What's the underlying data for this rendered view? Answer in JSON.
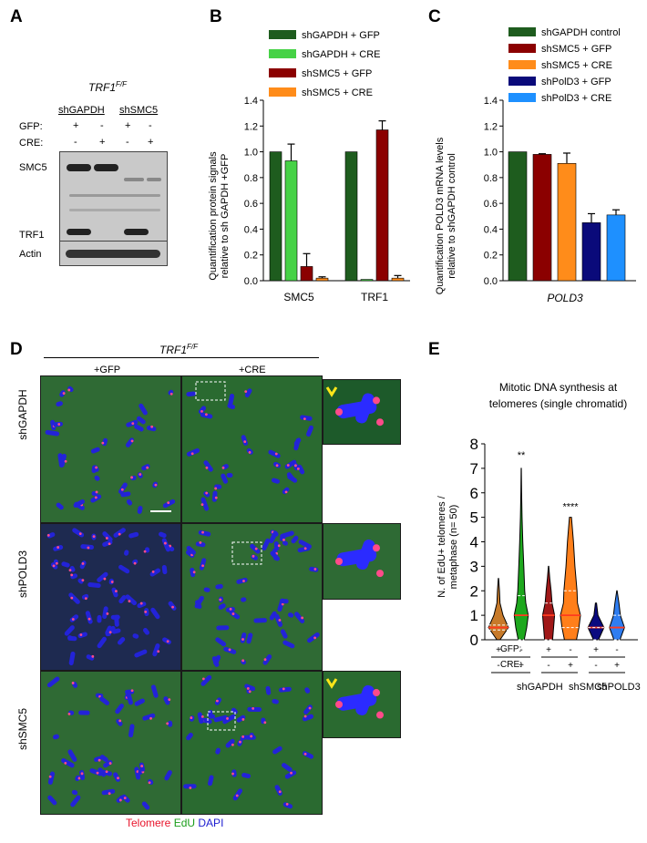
{
  "panels": {
    "a": "A",
    "b": "B",
    "c": "C",
    "d": "D",
    "e": "E"
  },
  "panel_a": {
    "genotype": "TRF1F/F",
    "genotype_base": "TRF1",
    "genotype_sup": "F/F",
    "groups": [
      "shGAPDH",
      "shSMC5"
    ],
    "row_gfp": "GFP:",
    "row_cre": "CRE:",
    "gfp_signs": [
      "+",
      "-",
      "+",
      "-"
    ],
    "cre_signs": [
      "-",
      "+",
      "-",
      "+"
    ],
    "bands": [
      "SMC5",
      "TRF1",
      "Actin"
    ]
  },
  "panel_b": {
    "ylabel": "Quantification protein signals relative to sh GAPDH +GFP",
    "ylabel_line1": "Quantification protein signals",
    "ylabel_line2": "relative to sh GAPDH +GFP"
  },
  "panel_c": {
    "ylabel_line1": "Quantification POLD3 mRNA levels",
    "ylabel_line2": "relative to shGAPDH control",
    "xlabel": "POLD3"
  },
  "panel_d": {
    "genotype_base": "TRF1",
    "genotype_sup": "F/F",
    "col_gfp": "+GFP",
    "col_cre": "+CRE",
    "rows": [
      "shGAPDH",
      "shPOLD3",
      "shSMC5"
    ],
    "legend_telomere": "Telomere",
    "legend_edu": "EdU",
    "legend_dapi": "DAPI",
    "colors": {
      "telomere": "#e8152c",
      "edu": "#1b9e1b",
      "dapi": "#1c1cd0"
    }
  },
  "panel_e": {
    "title_line1": "Mitotic DNA synthesis at",
    "title_line2": "telomeres (single chromatid)",
    "ylabel_line1": "N. of EdU+ telomeres /",
    "ylabel_line2": "metaphase (n= 50)",
    "row_gfp": "GFP:",
    "row_cre": "CRE:",
    "gfp_signs": [
      "+",
      "-",
      "+",
      "-",
      "+",
      "-"
    ],
    "cre_signs": [
      "-",
      "+",
      "-",
      "+",
      "-",
      "+"
    ],
    "groups": [
      "shGAPDH",
      "shSMC5",
      "shPOLD3"
    ],
    "sig": [
      "**",
      "****"
    ]
  },
  "chart_data": [
    {
      "type": "bar",
      "panel": "B",
      "categories": [
        "SMC5",
        "TRF1"
      ],
      "series": [
        {
          "name": "shGAPDH + GFP",
          "values": [
            1.0,
            1.0
          ],
          "errors": [
            0,
            0
          ],
          "color": "#1e5c1e"
        },
        {
          "name": "shGAPDH + CRE",
          "values": [
            0.93,
            0.01
          ],
          "errors": [
            0.13,
            0.0
          ],
          "color": "#46d246"
        },
        {
          "name": "shSMC5 + GFP",
          "values": [
            0.11,
            1.17
          ],
          "errors": [
            0.1,
            0.07
          ],
          "color": "#8b0000"
        },
        {
          "name": "shSMC5 + CRE",
          "values": [
            0.02,
            0.02
          ],
          "errors": [
            0.01,
            0.02
          ],
          "color": "#ff8c1a"
        }
      ],
      "ylim": [
        0,
        1.4
      ],
      "yticks": [
        "0.0",
        "0.2",
        "0.4",
        "0.6",
        "0.8",
        "1.0",
        "1.2",
        "1.4"
      ],
      "legend": "top"
    },
    {
      "type": "bar",
      "panel": "C",
      "categories": [
        "POLD3"
      ],
      "series": [
        {
          "name": "shGAPDH control",
          "values": [
            1.0
          ],
          "errors": [
            0
          ],
          "color": "#1e5c1e"
        },
        {
          "name": "shSMC5 + GFP",
          "values": [
            0.98
          ],
          "errors": [
            0.005
          ],
          "color": "#8b0000"
        },
        {
          "name": "shSMC5 + CRE",
          "values": [
            0.91
          ],
          "errors": [
            0.08
          ],
          "color": "#ff8c1a"
        },
        {
          "name": "shPolD3 + GFP",
          "values": [
            0.45
          ],
          "errors": [
            0.07
          ],
          "color": "#0a0a7a"
        },
        {
          "name": "shPolD3 + CRE",
          "values": [
            0.51
          ],
          "errors": [
            0.04
          ],
          "color": "#1e90ff"
        }
      ],
      "ylim": [
        0,
        1.4
      ],
      "yticks": [
        "0.0",
        "0.2",
        "0.4",
        "0.6",
        "0.8",
        "1.0",
        "1.2",
        "1.4"
      ],
      "legend": "top"
    },
    {
      "type": "violin",
      "panel": "E",
      "categories": [
        "shGAPDH +GFP",
        "shGAPDH +CRE",
        "shSMC5 +GFP",
        "shSMC5 +CRE",
        "shPOLD3 +GFP",
        "shPOLD3 +CRE"
      ],
      "series": [
        {
          "max": 2.5,
          "median": 0.5,
          "q1": 0.4,
          "q3": 0.6,
          "color": "#c77a2a",
          "widths": [
            [
              0,
              0.15
            ],
            [
              0.5,
              1.0
            ],
            [
              1,
              0.45
            ],
            [
              1.5,
              0.15
            ],
            [
              2,
              0.1
            ],
            [
              2.5,
              0.02
            ]
          ]
        },
        {
          "max": 7.0,
          "median": 1.0,
          "q1": 0.0,
          "q3": 1.8,
          "color": "#1ea81e",
          "widths": [
            [
              0,
              0.3
            ],
            [
              0.5,
              0.55
            ],
            [
              1,
              0.7
            ],
            [
              1.5,
              0.45
            ],
            [
              2,
              0.35
            ],
            [
              3,
              0.25
            ],
            [
              4,
              0.15
            ],
            [
              5,
              0.08
            ],
            [
              6,
              0.04
            ],
            [
              7,
              0.01
            ]
          ]
        },
        {
          "max": 3.0,
          "median": 1.0,
          "q1": 0.0,
          "q3": 1.5,
          "color": "#a01818",
          "widths": [
            [
              0,
              0.4
            ],
            [
              0.5,
              0.5
            ],
            [
              1,
              0.6
            ],
            [
              1.5,
              0.35
            ],
            [
              2,
              0.25
            ],
            [
              2.5,
              0.12
            ],
            [
              3,
              0.02
            ]
          ]
        },
        {
          "max": 5.0,
          "median": 1.0,
          "q1": 0.5,
          "q3": 2.0,
          "color": "#ff7f1a",
          "widths": [
            [
              0,
              0.6
            ],
            [
              0.5,
              0.85
            ],
            [
              1,
              1.0
            ],
            [
              1.5,
              0.7
            ],
            [
              2,
              0.65
            ],
            [
              3,
              0.45
            ],
            [
              4,
              0.3
            ],
            [
              5,
              0.1
            ]
          ]
        },
        {
          "max": 1.5,
          "median": 0.5,
          "q1": 0.0,
          "q3": 0.5,
          "color": "#0a0a80",
          "widths": [
            [
              0,
              0.25
            ],
            [
              0.5,
              0.8
            ],
            [
              1,
              0.2
            ],
            [
              1.5,
              0.05
            ]
          ]
        },
        {
          "max": 2.0,
          "median": 0.5,
          "q1": 0.0,
          "q3": 1.0,
          "color": "#2f7df0",
          "widths": [
            [
              0,
              0.3
            ],
            [
              0.5,
              0.75
            ],
            [
              1,
              0.35
            ],
            [
              1.5,
              0.2
            ],
            [
              2,
              0.02
            ]
          ]
        }
      ],
      "ylim": [
        0,
        8
      ],
      "yticks": [
        "0",
        "1",
        "2",
        "3",
        "4",
        "5",
        "6",
        "7",
        "8"
      ]
    }
  ]
}
